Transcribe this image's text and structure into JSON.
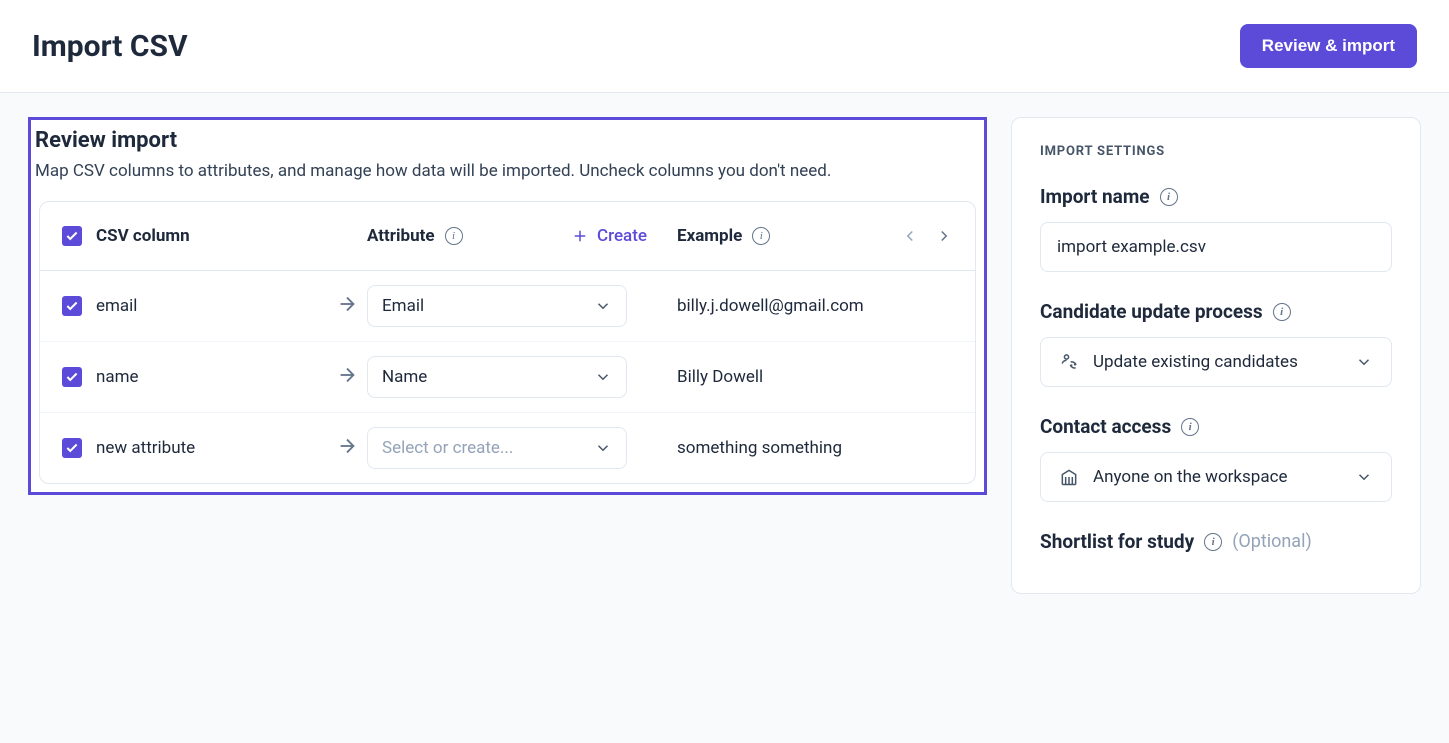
{
  "topbar": {
    "title": "Import CSV",
    "action_label": "Review & import"
  },
  "review": {
    "title": "Review import",
    "subtitle": "Map CSV columns to attributes, and manage how data will be imported. Uncheck columns you don't need.",
    "header": {
      "csv_column": "CSV column",
      "attribute": "Attribute",
      "create": "Create",
      "example": "Example"
    },
    "rows": [
      {
        "checked": true,
        "csv_label": "email",
        "attribute_value": "Email",
        "attribute_is_placeholder": false,
        "example": "billy.j.dowell@gmail.com"
      },
      {
        "checked": true,
        "csv_label": "name",
        "attribute_value": "Name",
        "attribute_is_placeholder": false,
        "example": "Billy Dowell"
      },
      {
        "checked": true,
        "csv_label": "new attribute",
        "attribute_value": "Select or create...",
        "attribute_is_placeholder": true,
        "example": "something something"
      }
    ]
  },
  "settings": {
    "heading": "IMPORT SETTINGS",
    "import_name": {
      "label": "Import name",
      "value": "import example.csv"
    },
    "update_process": {
      "label": "Candidate update process",
      "value": "Update existing candidates"
    },
    "contact_access": {
      "label": "Contact access",
      "value": "Anyone on the workspace"
    },
    "shortlist": {
      "label": "Shortlist for study",
      "optional": "(Optional)"
    }
  },
  "colors": {
    "primary": "#5b4bd8",
    "border": "#e2e8f0",
    "text": "#1e293b",
    "muted": "#94a3b8",
    "bg": "#f8fafc"
  }
}
